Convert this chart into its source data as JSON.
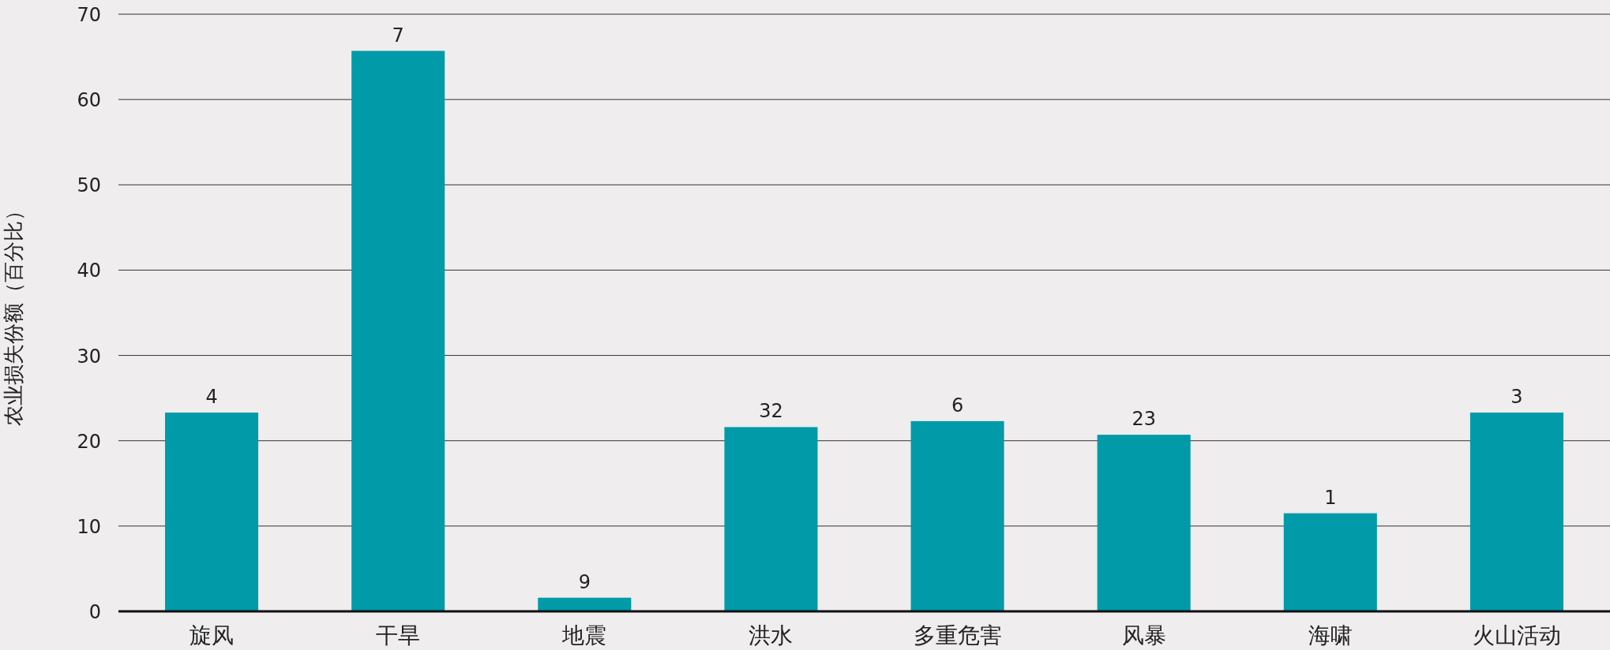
{
  "chart_data": {
    "type": "bar",
    "ylabel": "农业损失份额（百分比）",
    "categories": [
      "旋风",
      "干旱",
      "地震",
      "洪水",
      "多重危害",
      "风暴",
      "海啸",
      "火山活动"
    ],
    "values": [
      23.3,
      65.7,
      1.6,
      21.6,
      22.3,
      20.7,
      11.5,
      23.3
    ],
    "annotations": [
      {
        "text": "4",
        "x": "旋风",
        "y": 23.3
      },
      {
        "text": "7",
        "x": "干旱",
        "y": 65.7
      },
      {
        "text": "9",
        "x": "地震",
        "y": 1.6
      },
      {
        "text": "32",
        "x": "洪水",
        "y": 21.6
      },
      {
        "text": "6",
        "x": "多重危害",
        "y": 22.3
      },
      {
        "text": "23",
        "x": "风暴",
        "y": 20.7
      },
      {
        "text": "1",
        "x": "海啸",
        "y": 11.5
      },
      {
        "text": "3",
        "x": "火山活动",
        "y": 23.3
      }
    ],
    "color": "#009aa9",
    "ylim": [
      0,
      70
    ],
    "yticks": [
      0,
      10,
      20,
      30,
      40,
      50,
      60,
      70
    ],
    "grid": "y"
  }
}
